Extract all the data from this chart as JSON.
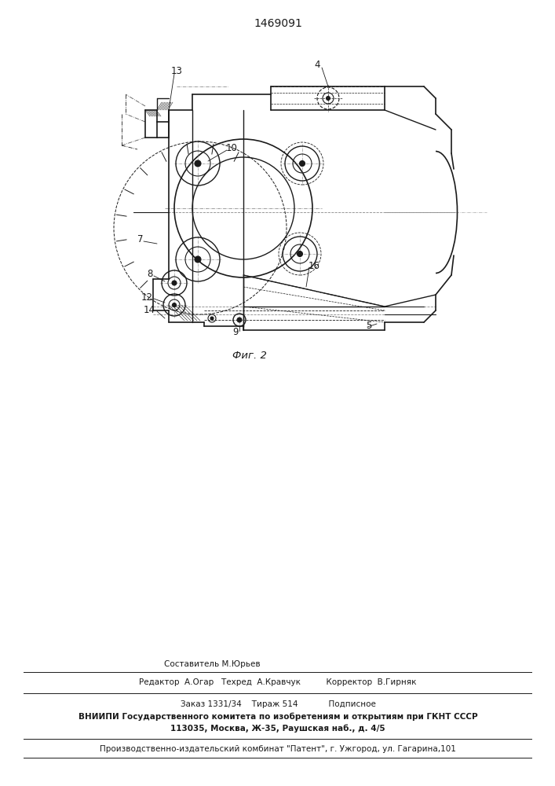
{
  "patent_number": "1469091",
  "fig_label": "Фиг. 2",
  "bg_color": "#ffffff",
  "line_color": "#1a1a1a",
  "footer": {
    "sestavitel": "Составитель М.Юрьев",
    "redaktor": "Редактор  А.Огар   Техред  А.Кравчук          Корректор  В.Гирняк",
    "zakaz": "Заказ 1331/34    Тираж 514            Подписное",
    "vniipи1": "ВНИИПИ Государственного комитета по изобретениям и открытиям при ГКНТ СССР",
    "vniipи2": "113035, Москва, Ж-35, Раушская наб., д. 4/5",
    "proizv": "Производственно-издательский комбинат \"Патент\", г. Ужгород, ул. Гагарина,101"
  }
}
